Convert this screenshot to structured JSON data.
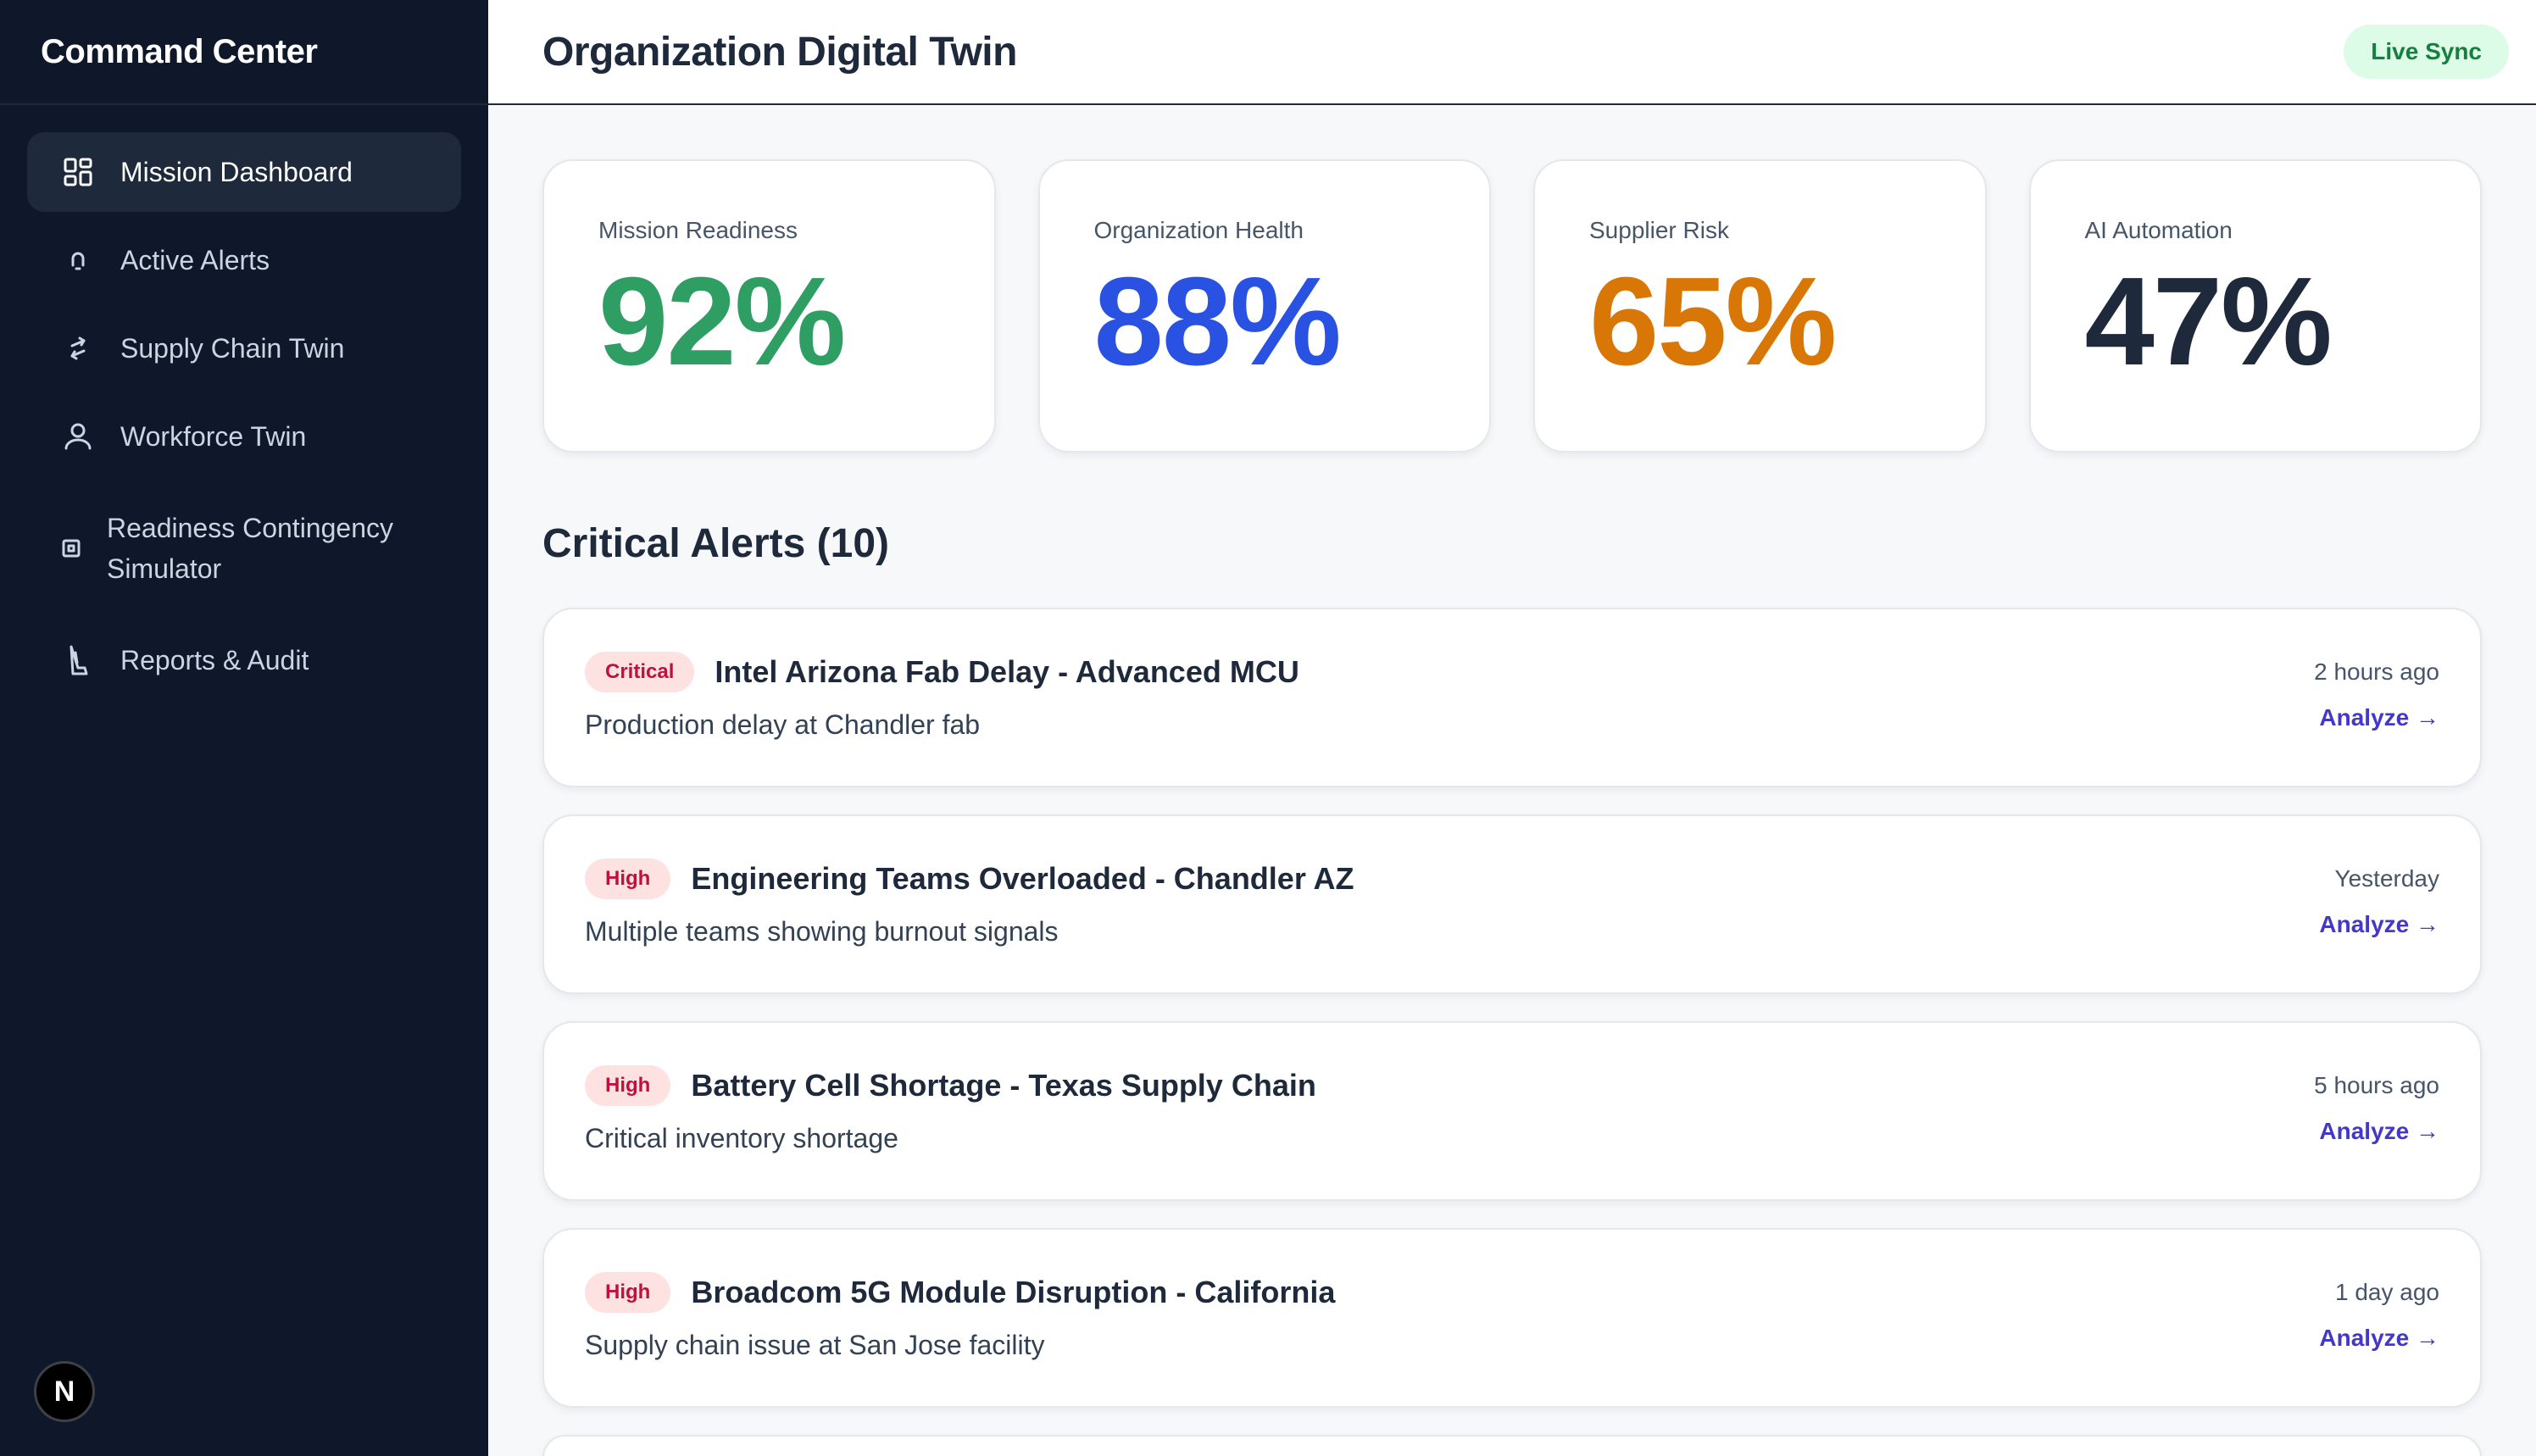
{
  "sidebar": {
    "brand": "Command Center",
    "items": [
      {
        "label": "Mission Dashboard",
        "icon": "dashboard-grid-icon",
        "active": true
      },
      {
        "label": "Active Alerts",
        "icon": "bell-icon"
      },
      {
        "label": "Supply Chain Twin",
        "icon": "arrows-swap-icon"
      },
      {
        "label": "Workforce Twin",
        "icon": "user-icon"
      },
      {
        "label": "Readiness Contingency Simulator",
        "icon": "chip-icon"
      },
      {
        "label": "Reports & Audit",
        "icon": "document-icon"
      }
    ],
    "badge": "N"
  },
  "header": {
    "title": "Organization Digital Twin",
    "status": "Live Sync"
  },
  "kpis": [
    {
      "label": "Mission Readiness",
      "value": "92%",
      "color": "#2f9e63"
    },
    {
      "label": "Organization Health",
      "value": "88%",
      "color": "#2952e3"
    },
    {
      "label": "Supplier Risk",
      "value": "65%",
      "color": "#d97706"
    },
    {
      "label": "AI Automation",
      "value": "47%",
      "color": "#1e293b"
    }
  ],
  "alerts_section": {
    "title": "Critical Alerts (10)",
    "action_label": "Analyze →",
    "items": [
      {
        "severity": "Critical",
        "title": "Intel Arizona Fab Delay - Advanced MCU",
        "description": "Production delay at Chandler fab",
        "time": "2 hours ago"
      },
      {
        "severity": "High",
        "title": "Engineering Teams Overloaded - Chandler AZ",
        "description": "Multiple teams showing burnout signals",
        "time": "Yesterday"
      },
      {
        "severity": "High",
        "title": "Battery Cell Shortage - Texas Supply Chain",
        "description": "Critical inventory shortage",
        "time": "5 hours ago"
      },
      {
        "severity": "High",
        "title": "Broadcom 5G Module Disruption - California",
        "description": "Supply chain issue at San Jose facility",
        "time": "1 day ago"
      }
    ]
  },
  "colors": {
    "sidebar_bg": "#0f172a",
    "accent_link": "#4338ca",
    "badge_bg": "#fee2e2",
    "badge_text": "#be123c",
    "live_sync_bg": "#dcfce7"
  }
}
